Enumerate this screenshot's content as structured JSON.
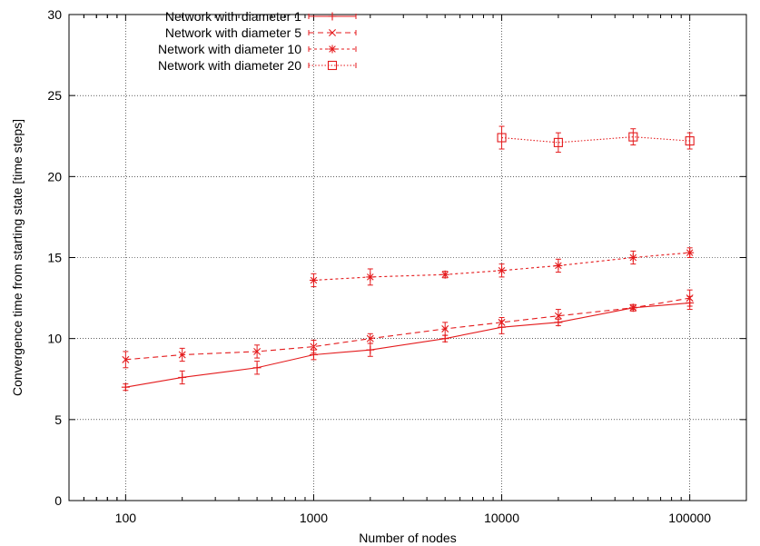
{
  "chart_data": {
    "type": "line",
    "xlabel": "Number of nodes",
    "ylabel": "Convergence time from starting state [time steps]",
    "xscale": "log",
    "xlim": [
      50,
      200000
    ],
    "ylim": [
      0,
      30
    ],
    "x_ticks": [
      100,
      1000,
      10000,
      100000
    ],
    "x_tick_labels": [
      "100",
      "1000",
      "10000",
      "100000"
    ],
    "y_ticks": [
      0,
      5,
      10,
      15,
      20,
      25,
      30
    ],
    "y_tick_labels": [
      "0",
      "5",
      "10",
      "15",
      "20",
      "25",
      "30"
    ],
    "grid": true,
    "legend_position": "top-left",
    "color": "#e41a1c",
    "series": [
      {
        "name": "Network with diameter 1",
        "marker": "plus",
        "line": "solid",
        "points": [
          {
            "x": 100,
            "y": 7.0,
            "err": 0.2
          },
          {
            "x": 200,
            "y": 7.6,
            "err": 0.4
          },
          {
            "x": 500,
            "y": 8.2,
            "err": 0.4
          },
          {
            "x": 1000,
            "y": 9.0,
            "err": 0.3
          },
          {
            "x": 2000,
            "y": 9.3,
            "err": 0.4
          },
          {
            "x": 5000,
            "y": 10.0,
            "err": 0.2
          },
          {
            "x": 10000,
            "y": 10.7,
            "err": 0.4
          },
          {
            "x": 20000,
            "y": 11.0,
            "err": 0.2
          },
          {
            "x": 50000,
            "y": 11.9,
            "err": 0.1
          },
          {
            "x": 100000,
            "y": 12.2,
            "err": 0.4
          }
        ]
      },
      {
        "name": "Network with diameter 5",
        "marker": "x",
        "line": "dashed",
        "points": [
          {
            "x": 100,
            "y": 8.7,
            "err": 0.5
          },
          {
            "x": 200,
            "y": 9.0,
            "err": 0.4
          },
          {
            "x": 500,
            "y": 9.2,
            "err": 0.4
          },
          {
            "x": 1000,
            "y": 9.5,
            "err": 0.4
          },
          {
            "x": 2000,
            "y": 10.0,
            "err": 0.3
          },
          {
            "x": 5000,
            "y": 10.6,
            "err": 0.4
          },
          {
            "x": 10000,
            "y": 11.0,
            "err": 0.3
          },
          {
            "x": 20000,
            "y": 11.4,
            "err": 0.4
          },
          {
            "x": 50000,
            "y": 11.9,
            "err": 0.2
          },
          {
            "x": 100000,
            "y": 12.5,
            "err": 0.5
          }
        ]
      },
      {
        "name": "Network with diameter 10",
        "marker": "star",
        "line": "short-dashed",
        "points": [
          {
            "x": 1000,
            "y": 13.6,
            "err": 0.4
          },
          {
            "x": 2000,
            "y": 13.8,
            "err": 0.5
          },
          {
            "x": 5000,
            "y": 13.95,
            "err": 0.2
          },
          {
            "x": 10000,
            "y": 14.2,
            "err": 0.4
          },
          {
            "x": 20000,
            "y": 14.5,
            "err": 0.4
          },
          {
            "x": 50000,
            "y": 15.0,
            "err": 0.4
          },
          {
            "x": 100000,
            "y": 15.3,
            "err": 0.3
          }
        ]
      },
      {
        "name": "Network with diameter 20",
        "marker": "square",
        "line": "dotted",
        "points": [
          {
            "x": 10000,
            "y": 22.4,
            "err": 0.7
          },
          {
            "x": 20000,
            "y": 22.1,
            "err": 0.6
          },
          {
            "x": 50000,
            "y": 22.45,
            "err": 0.5
          },
          {
            "x": 100000,
            "y": 22.2,
            "err": 0.5
          }
        ]
      }
    ]
  }
}
